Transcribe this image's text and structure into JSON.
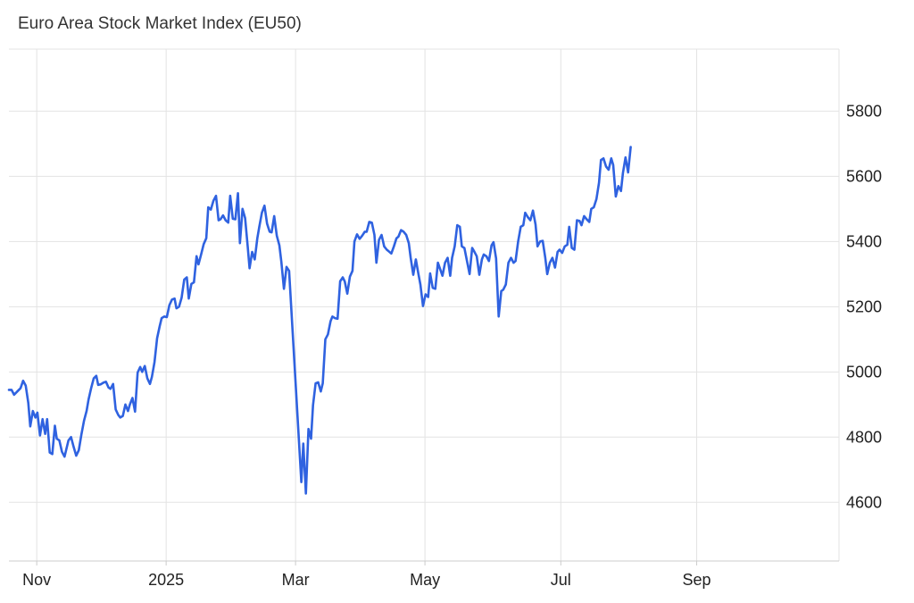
{
  "chart_data": {
    "type": "line",
    "title": "Euro Area Stock Market Index (EU50)",
    "xlabel": "",
    "ylabel": "",
    "x_ticks": [
      {
        "label": "Nov",
        "x": 2.23
      },
      {
        "label": "2025",
        "x": 4.23
      },
      {
        "label": "Mar",
        "x": 6.23
      },
      {
        "label": "May",
        "x": 8.23
      },
      {
        "label": "Jul",
        "x": 10.33
      },
      {
        "label": "Sep",
        "x": 12.43
      }
    ],
    "y_ticks": [
      4600,
      4800,
      5000,
      5200,
      5400,
      5600,
      5800
    ],
    "xlim": [
      1.8,
      14.63
    ],
    "ylim": [
      4420,
      5990
    ],
    "grid": true,
    "legend": "none",
    "colors": {
      "line": "#2f62e0",
      "grid": "#e3e3e3"
    },
    "series": [
      {
        "values": [
          [
            1.8,
            4945
          ],
          [
            1.84,
            4945
          ],
          [
            1.88,
            4930
          ],
          [
            1.93,
            4940
          ],
          [
            1.98,
            4950
          ],
          [
            2.02,
            4973
          ],
          [
            2.06,
            4958
          ],
          [
            2.1,
            4905
          ],
          [
            2.13,
            4833
          ],
          [
            2.17,
            4880
          ],
          [
            2.21,
            4860
          ],
          [
            2.24,
            4875
          ],
          [
            2.28,
            4805
          ],
          [
            2.32,
            4855
          ],
          [
            2.36,
            4810
          ],
          [
            2.39,
            4855
          ],
          [
            2.43,
            4753
          ],
          [
            2.47,
            4748
          ],
          [
            2.51,
            4835
          ],
          [
            2.54,
            4795
          ],
          [
            2.58,
            4790
          ],
          [
            2.62,
            4755
          ],
          [
            2.66,
            4740
          ],
          [
            2.72,
            4790
          ],
          [
            2.76,
            4800
          ],
          [
            2.8,
            4770
          ],
          [
            2.84,
            4743
          ],
          [
            2.88,
            4760
          ],
          [
            2.92,
            4808
          ],
          [
            2.96,
            4850
          ],
          [
            3.0,
            4880
          ],
          [
            3.03,
            4915
          ],
          [
            3.07,
            4950
          ],
          [
            3.11,
            4980
          ],
          [
            3.15,
            4988
          ],
          [
            3.18,
            4960
          ],
          [
            3.22,
            4962
          ],
          [
            3.26,
            4967
          ],
          [
            3.3,
            4970
          ],
          [
            3.34,
            4952
          ],
          [
            3.37,
            4948
          ],
          [
            3.41,
            4963
          ],
          [
            3.45,
            4885
          ],
          [
            3.49,
            4868
          ],
          [
            3.52,
            4860
          ],
          [
            3.56,
            4865
          ],
          [
            3.6,
            4900
          ],
          [
            3.64,
            4880
          ],
          [
            3.67,
            4900
          ],
          [
            3.71,
            4920
          ],
          [
            3.75,
            4878
          ],
          [
            3.79,
            4998
          ],
          [
            3.83,
            5015
          ],
          [
            3.86,
            5000
          ],
          [
            3.9,
            5018
          ],
          [
            3.94,
            4980
          ],
          [
            3.98,
            4963
          ],
          [
            4.01,
            4985
          ],
          [
            4.05,
            5030
          ],
          [
            4.09,
            5103
          ],
          [
            4.13,
            5140
          ],
          [
            4.16,
            5165
          ],
          [
            4.2,
            5170
          ],
          [
            4.24,
            5168
          ],
          [
            4.28,
            5205
          ],
          [
            4.32,
            5222
          ],
          [
            4.36,
            5225
          ],
          [
            4.39,
            5195
          ],
          [
            4.43,
            5200
          ],
          [
            4.47,
            5228
          ],
          [
            4.51,
            5283
          ],
          [
            4.55,
            5290
          ],
          [
            4.58,
            5225
          ],
          [
            4.62,
            5270
          ],
          [
            4.66,
            5275
          ],
          [
            4.7,
            5355
          ],
          [
            4.73,
            5330
          ],
          [
            4.77,
            5360
          ],
          [
            4.81,
            5392
          ],
          [
            4.85,
            5410
          ],
          [
            4.88,
            5505
          ],
          [
            4.92,
            5498
          ],
          [
            4.96,
            5525
          ],
          [
            5.0,
            5540
          ],
          [
            5.04,
            5465
          ],
          [
            5.07,
            5468
          ],
          [
            5.11,
            5480
          ],
          [
            5.15,
            5465
          ],
          [
            5.19,
            5458
          ],
          [
            5.22,
            5540
          ],
          [
            5.26,
            5470
          ],
          [
            5.3,
            5468
          ],
          [
            5.34,
            5548
          ],
          [
            5.37,
            5395
          ],
          [
            5.41,
            5500
          ],
          [
            5.45,
            5472
          ],
          [
            5.49,
            5385
          ],
          [
            5.52,
            5318
          ],
          [
            5.56,
            5368
          ],
          [
            5.6,
            5345
          ],
          [
            5.64,
            5410
          ],
          [
            5.67,
            5445
          ],
          [
            5.71,
            5488
          ],
          [
            5.75,
            5510
          ],
          [
            5.79,
            5455
          ],
          [
            5.83,
            5430
          ],
          [
            5.86,
            5428
          ],
          [
            5.9,
            5478
          ],
          [
            5.94,
            5418
          ],
          [
            5.98,
            5388
          ],
          [
            6.01,
            5338
          ],
          [
            6.05,
            5255
          ],
          [
            6.09,
            5322
          ],
          [
            6.13,
            5310
          ],
          [
            6.32,
            4662
          ],
          [
            6.35,
            4780
          ],
          [
            6.39,
            4627
          ],
          [
            6.43,
            4825
          ],
          [
            6.47,
            4795
          ],
          [
            6.5,
            4898
          ],
          [
            6.54,
            4965
          ],
          [
            6.58,
            4968
          ],
          [
            6.62,
            4940
          ],
          [
            6.65,
            4965
          ],
          [
            6.69,
            5100
          ],
          [
            6.73,
            5115
          ],
          [
            6.77,
            5155
          ],
          [
            6.8,
            5170
          ],
          [
            6.84,
            5165
          ],
          [
            6.88,
            5163
          ],
          [
            6.92,
            5278
          ],
          [
            6.96,
            5290
          ],
          [
            6.99,
            5278
          ],
          [
            7.03,
            5240
          ],
          [
            7.07,
            5292
          ],
          [
            7.11,
            5310
          ],
          [
            7.14,
            5400
          ],
          [
            7.18,
            5422
          ],
          [
            7.22,
            5408
          ],
          [
            7.26,
            5418
          ],
          [
            7.3,
            5430
          ],
          [
            7.33,
            5430
          ],
          [
            7.37,
            5460
          ],
          [
            7.41,
            5458
          ],
          [
            7.45,
            5420
          ],
          [
            7.48,
            5335
          ],
          [
            7.52,
            5405
          ],
          [
            7.56,
            5420
          ],
          [
            7.6,
            5385
          ],
          [
            7.64,
            5375
          ],
          [
            7.67,
            5370
          ],
          [
            7.71,
            5363
          ],
          [
            7.75,
            5385
          ],
          [
            7.79,
            5410
          ],
          [
            7.82,
            5415
          ],
          [
            7.86,
            5435
          ],
          [
            7.9,
            5430
          ],
          [
            7.94,
            5420
          ],
          [
            7.98,
            5395
          ],
          [
            8.01,
            5350
          ],
          [
            8.05,
            5298
          ],
          [
            8.09,
            5345
          ],
          [
            8.13,
            5300
          ],
          [
            8.16,
            5268
          ],
          [
            8.2,
            5202
          ],
          [
            8.24,
            5238
          ],
          [
            8.28,
            5230
          ],
          [
            8.31,
            5302
          ],
          [
            8.35,
            5258
          ],
          [
            8.39,
            5255
          ],
          [
            8.43,
            5335
          ],
          [
            8.46,
            5318
          ],
          [
            8.5,
            5295
          ],
          [
            8.54,
            5335
          ],
          [
            8.58,
            5350
          ],
          [
            8.62,
            5295
          ],
          [
            8.65,
            5350
          ],
          [
            8.69,
            5385
          ],
          [
            8.73,
            5450
          ],
          [
            8.77,
            5445
          ],
          [
            8.8,
            5385
          ],
          [
            8.84,
            5380
          ],
          [
            8.88,
            5340
          ],
          [
            8.92,
            5300
          ],
          [
            8.96,
            5380
          ],
          [
            8.99,
            5370
          ],
          [
            9.03,
            5355
          ],
          [
            9.07,
            5298
          ],
          [
            9.11,
            5345
          ],
          [
            9.14,
            5360
          ],
          [
            9.18,
            5355
          ],
          [
            9.22,
            5340
          ],
          [
            9.26,
            5388
          ],
          [
            9.29,
            5398
          ],
          [
            9.33,
            5348
          ],
          [
            9.37,
            5170
          ],
          [
            9.41,
            5248
          ],
          [
            9.44,
            5252
          ],
          [
            9.48,
            5268
          ],
          [
            9.52,
            5335
          ],
          [
            9.56,
            5350
          ],
          [
            9.6,
            5335
          ],
          [
            9.63,
            5340
          ],
          [
            9.67,
            5400
          ],
          [
            9.71,
            5445
          ],
          [
            9.75,
            5450
          ],
          [
            9.78,
            5488
          ],
          [
            9.82,
            5475
          ],
          [
            9.86,
            5465
          ],
          [
            9.9,
            5495
          ],
          [
            9.94,
            5452
          ],
          [
            9.97,
            5385
          ],
          [
            10.01,
            5400
          ],
          [
            10.05,
            5402
          ],
          [
            10.09,
            5350
          ],
          [
            10.12,
            5300
          ],
          [
            10.16,
            5335
          ],
          [
            10.2,
            5350
          ],
          [
            10.24,
            5320
          ],
          [
            10.28,
            5368
          ],
          [
            10.31,
            5375
          ],
          [
            10.35,
            5365
          ],
          [
            10.39,
            5385
          ],
          [
            10.43,
            5390
          ],
          [
            10.46,
            5445
          ],
          [
            10.5,
            5380
          ],
          [
            10.54,
            5375
          ],
          [
            10.58,
            5465
          ],
          [
            10.62,
            5463
          ],
          [
            10.65,
            5450
          ],
          [
            10.69,
            5478
          ],
          [
            10.73,
            5468
          ],
          [
            10.77,
            5460
          ],
          [
            10.8,
            5500
          ],
          [
            10.84,
            5505
          ],
          [
            10.88,
            5530
          ],
          [
            10.92,
            5580
          ],
          [
            10.95,
            5650
          ],
          [
            10.99,
            5655
          ],
          [
            11.03,
            5630
          ],
          [
            11.07,
            5620
          ],
          [
            11.11,
            5655
          ],
          [
            11.14,
            5635
          ],
          [
            11.18,
            5538
          ],
          [
            11.22,
            5570
          ],
          [
            11.26,
            5555
          ],
          [
            11.29,
            5610
          ],
          [
            11.33,
            5658
          ],
          [
            11.37,
            5612
          ],
          [
            11.41,
            5690
          ]
        ]
      }
    ]
  }
}
